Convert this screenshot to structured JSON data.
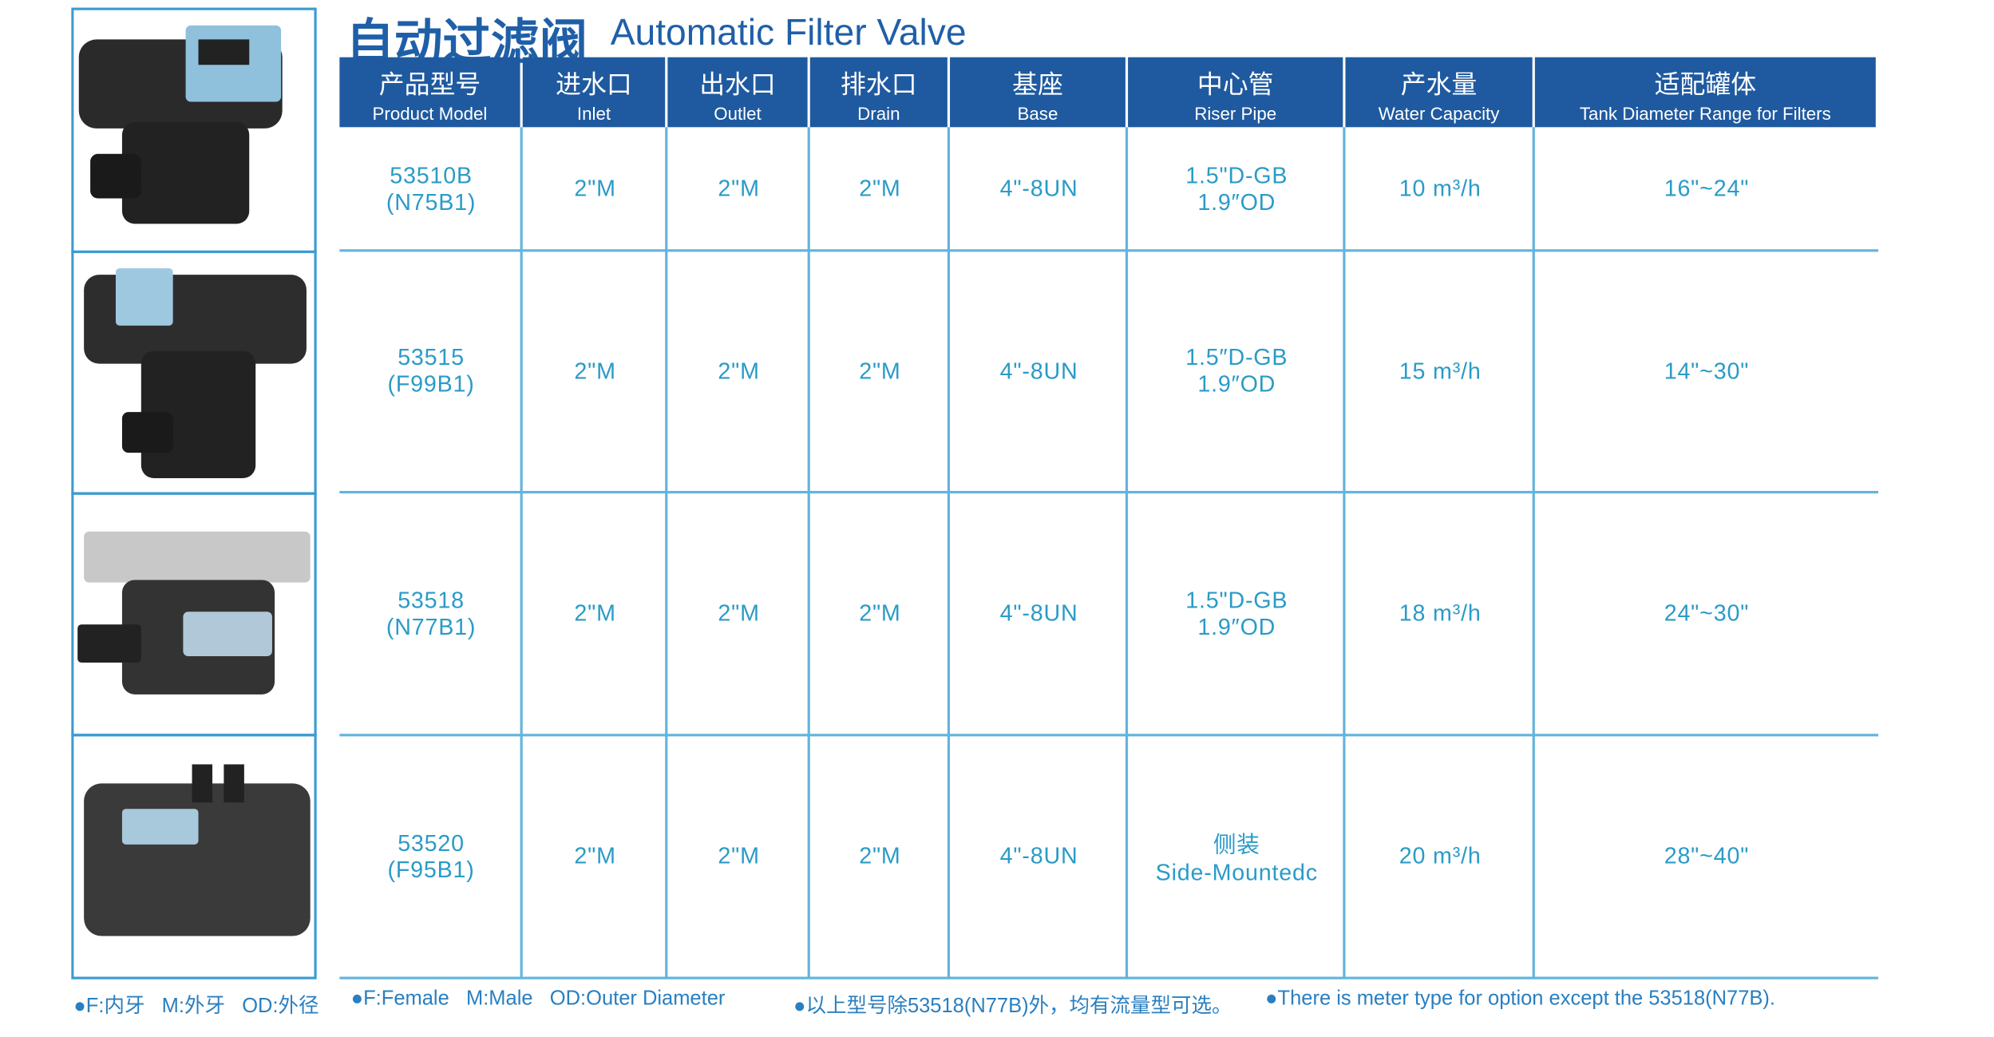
{
  "title": {
    "zh": "自动过滤阀",
    "en": "Automatic Filter Valve"
  },
  "table": {
    "headers": [
      {
        "zh": "产品型号",
        "en": "Product Model"
      },
      {
        "zh": "进水口",
        "en": "Inlet"
      },
      {
        "zh": "出水口",
        "en": "Outlet"
      },
      {
        "zh": "排水口",
        "en": "Drain"
      },
      {
        "zh": "基座",
        "en": "Base"
      },
      {
        "zh": "中心管",
        "en": "Riser Pipe"
      },
      {
        "zh": "产水量",
        "en": "Water Capacity"
      },
      {
        "zh": "适配罐体",
        "en": "Tank Diameter Range for Filters"
      }
    ],
    "rows": [
      [
        [
          "53510B",
          "(N75B1)"
        ],
        [
          "2\"M"
        ],
        [
          "2\"M"
        ],
        [
          "2\"M"
        ],
        [
          "4\"-8UN"
        ],
        [
          "1.5\"D-GB",
          "1.9″OD"
        ],
        [
          "10 m³/h"
        ],
        [
          "16\"~24\""
        ]
      ],
      [
        [
          "53515",
          "(F99B1)"
        ],
        [
          "2\"M"
        ],
        [
          "2\"M"
        ],
        [
          "2\"M"
        ],
        [
          "4\"-8UN"
        ],
        [
          "1.5″D-GB",
          "1.9″OD"
        ],
        [
          "15 m³/h"
        ],
        [
          "14\"~30\""
        ]
      ],
      [
        [
          "53518",
          "(N77B1)"
        ],
        [
          "2\"M"
        ],
        [
          "2\"M"
        ],
        [
          "2\"M"
        ],
        [
          "4\"-8UN"
        ],
        [
          "1.5\"D-GB",
          "1.9″OD"
        ],
        [
          "18 m³/h"
        ],
        [
          "24\"~30\""
        ]
      ],
      [
        [
          "53520",
          "(F95B1)"
        ],
        [
          "2\"M"
        ],
        [
          "2\"M"
        ],
        [
          "2\"M"
        ],
        [
          "4\"-8UN"
        ],
        [
          "侧装",
          "Side-Mountedc"
        ],
        [
          "20 m³/h"
        ],
        [
          "28\"~40\""
        ]
      ]
    ]
  },
  "footer": [
    "F:内牙   M:外牙   OD:外径",
    "F:Female   M:Male   OD:Outer Diameter",
    "以上型号除53518(N77B)外，均有流量型可选。",
    "There is meter type for option except the 53518(N77B)."
  ]
}
